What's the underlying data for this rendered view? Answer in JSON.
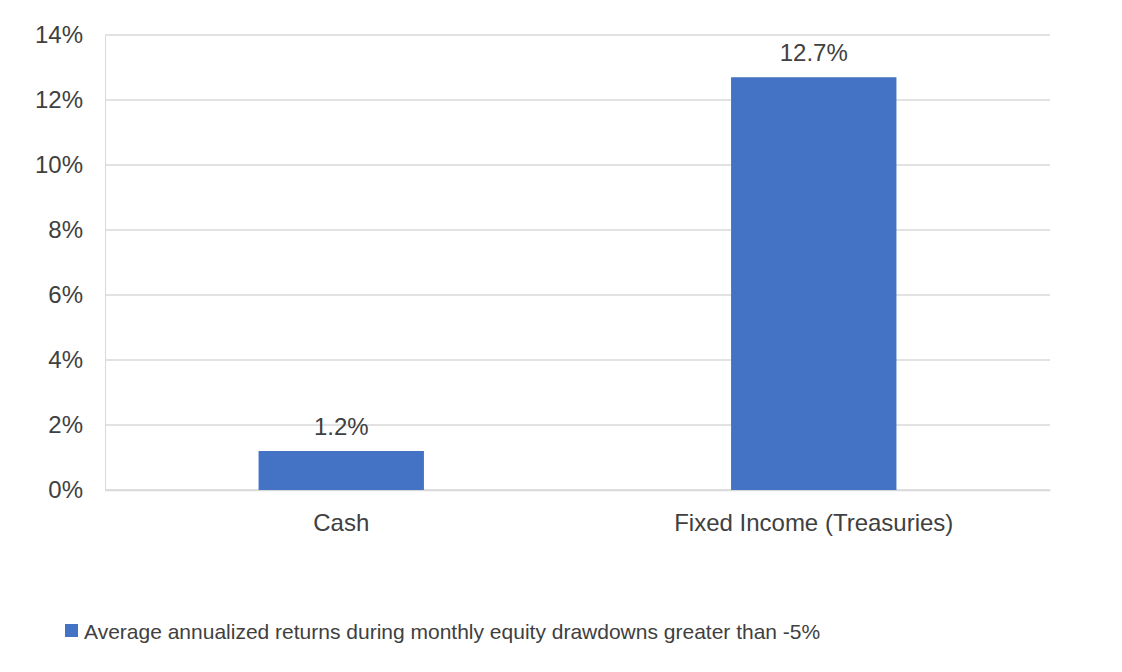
{
  "chart_data": {
    "type": "bar",
    "categories": [
      "Cash",
      "Fixed Income (Treasuries)"
    ],
    "series": [
      {
        "name": "Average annualized returns during monthly equity drawdowns greater than -5%",
        "color": "#4472c4",
        "values": [
          1.2,
          12.7
        ],
        "value_labels": [
          "1.2%",
          "12.7%"
        ]
      }
    ],
    "ylim": [
      0,
      14
    ],
    "yticks": [
      {
        "value": 0,
        "label": "0%"
      },
      {
        "value": 2,
        "label": "2%"
      },
      {
        "value": 4,
        "label": "4%"
      },
      {
        "value": 6,
        "label": "6%"
      },
      {
        "value": 8,
        "label": "8%"
      },
      {
        "value": 10,
        "label": "10%"
      },
      {
        "value": 12,
        "label": "12%"
      },
      {
        "value": 14,
        "label": "14%"
      }
    ],
    "grid": true,
    "data_labels": true,
    "legend": "bottom"
  }
}
